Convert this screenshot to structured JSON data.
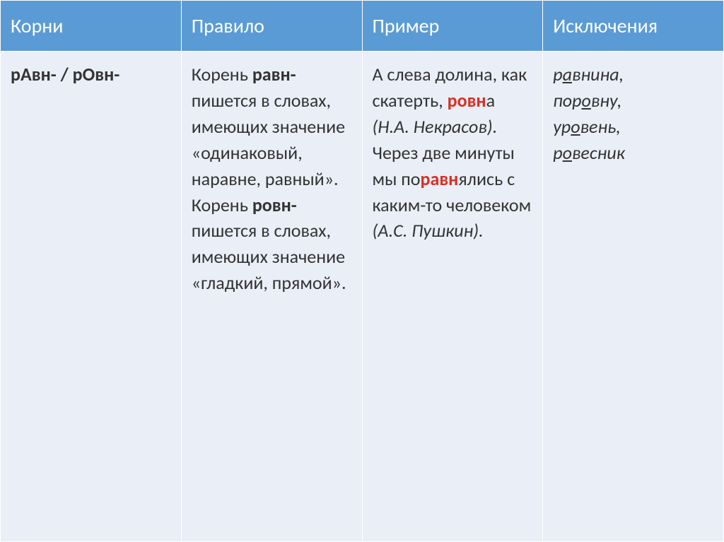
{
  "header": {
    "col1": "Корни",
    "col2": "Правило",
    "col3": "Пример",
    "col4": "Исключения"
  },
  "row": {
    "roots_prefix": "р",
    "roots_a": "А",
    "roots_mid1": "вн- / р",
    "roots_o": "О",
    "roots_suffix": "вн-",
    "rule_p1": "Корень ",
    "rule_b1": "равн-",
    "rule_p2": " пишется в словах, имеющих значение «одинаковый, наравне, равный». Корень ",
    "rule_b2": "ровн-",
    "rule_p3": " пишется в словах, имеющих значение «гладкий, прямой».",
    "ex_p1": "А слева долина, как скатерть, ",
    "ex_r1": "ровн",
    "ex_p2": "а ",
    "ex_i1": "(Н.А. Некрасов).",
    "ex_p3": " Через две минуты мы по",
    "ex_r2": "равн",
    "ex_p4": "ялись с каким-то человеком ",
    "ex_i2": "(А.С. Пушкин).",
    "exc1_pre": "р",
    "exc1_u": "а",
    "exc1_post": "внина,",
    "exc2_pre": "пор",
    "exc2_u": "о",
    "exc2_post": "вну,",
    "exc3_pre": "ур",
    "exc3_u": "о",
    "exc3_post": "вень,",
    "exc4_pre": "р",
    "exc4_u": "о",
    "exc4_post": "весник"
  },
  "styling": {
    "header_bg": "#5b9bd5",
    "header_text_color": "#ffffff",
    "cell_bg": "#e9eef7",
    "cell_text_color": "#333333",
    "border_color": "#ffffff",
    "highlight_color": "#d93025",
    "header_fontsize": 28,
    "cell_fontsize": 26,
    "line_height": 1.42,
    "columns": 4,
    "column_widths_pct": [
      25,
      25,
      25,
      25
    ]
  }
}
